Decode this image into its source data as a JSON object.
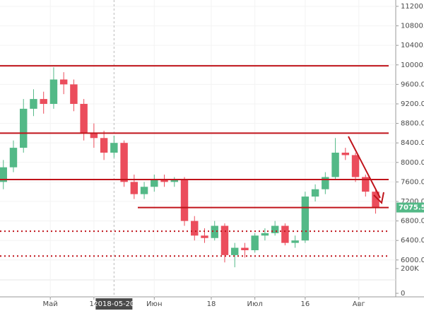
{
  "chart_data": {
    "type": "candlestick",
    "x": [
      "2018-04-17",
      "2018-04-20",
      "2018-04-23",
      "2018-04-26",
      "2018-04-29",
      "2018-05-02",
      "2018-05-05",
      "2018-05-08",
      "2018-05-11",
      "2018-05-14",
      "2018-05-17",
      "2018-05-20",
      "2018-05-23",
      "2018-05-26",
      "2018-05-29",
      "2018-06-01",
      "2018-06-04",
      "2018-06-07",
      "2018-06-10",
      "2018-06-13",
      "2018-06-16",
      "2018-06-19",
      "2018-06-22",
      "2018-06-25",
      "2018-06-28",
      "2018-07-01",
      "2018-07-04",
      "2018-07-07",
      "2018-07-10",
      "2018-07-13",
      "2018-07-16",
      "2018-07-19",
      "2018-07-22",
      "2018-07-25",
      "2018-07-28",
      "2018-07-31",
      "2018-08-03",
      "2018-08-06"
    ],
    "open": [
      7600,
      7900,
      8300,
      9100,
      9300,
      9200,
      9700,
      9600,
      9200,
      8600,
      8500,
      8200,
      8400,
      7600,
      7350,
      7500,
      7650,
      7600,
      7650,
      6800,
      6500,
      6450,
      6700,
      6100,
      6250,
      6200,
      6500,
      6550,
      6700,
      6350,
      6400,
      7300,
      7450,
      7700,
      8200,
      8150,
      7700,
      7400
    ],
    "high": [
      8050,
      8450,
      9300,
      9500,
      9450,
      9950,
      9850,
      9700,
      9300,
      8800,
      8650,
      8550,
      8450,
      7750,
      7600,
      7750,
      7750,
      7700,
      7700,
      6900,
      6650,
      6800,
      6750,
      6350,
      6350,
      6550,
      6650,
      6800,
      6750,
      6500,
      7400,
      7550,
      7800,
      8500,
      8300,
      8200,
      7750,
      7450
    ],
    "low": [
      7450,
      7800,
      8200,
      8950,
      9000,
      9100,
      9400,
      9050,
      8450,
      8300,
      8050,
      8100,
      7500,
      7250,
      7250,
      7400,
      7500,
      7500,
      6700,
      6400,
      6350,
      6400,
      5950,
      5850,
      6050,
      6150,
      6400,
      6500,
      6300,
      6250,
      6350,
      7200,
      7350,
      7650,
      8050,
      7600,
      7300,
      6950
    ],
    "close": [
      7900,
      8300,
      9100,
      9300,
      9200,
      9700,
      9600,
      9200,
      8600,
      8500,
      8200,
      8400,
      7600,
      7350,
      7500,
      7650,
      7600,
      7650,
      6800,
      6500,
      6450,
      6700,
      6100,
      6250,
      6200,
      6500,
      6550,
      6700,
      6350,
      6400,
      7300,
      7450,
      7700,
      8200,
      8150,
      7700,
      7400,
      7075.5
    ],
    "up_color": "#53b987",
    "down_color": "#eb4d5c",
    "xlim": [
      "2018-04-16",
      "2018-08-12"
    ],
    "xticks": [
      {
        "value": "2018-05-01",
        "label": "Май"
      },
      {
        "value": "2018-05-14",
        "label": "14"
      },
      {
        "value": "2018-06-01",
        "label": "Июн"
      },
      {
        "value": "2018-06-18",
        "label": "18"
      },
      {
        "value": "2018-07-01",
        "label": "Июл"
      },
      {
        "value": "2018-07-16",
        "label": "16"
      },
      {
        "value": "2018-08-01",
        "label": "Авг"
      }
    ],
    "crosshair": "2018-05-20",
    "ylim": [
      5800,
      11330
    ],
    "yticks": [
      {
        "value": 6000,
        "label": "6000.0"
      },
      {
        "value": 6400,
        "label": "6400.0"
      },
      {
        "value": 6800,
        "label": "6800.0"
      },
      {
        "value": 7200,
        "label": "7200.0"
      },
      {
        "value": 7600,
        "label": "7600.0"
      },
      {
        "value": 8000,
        "label": "8000.0"
      },
      {
        "value": 8400,
        "label": "8400.0"
      },
      {
        "value": 8800,
        "label": "8800.0"
      },
      {
        "value": 9200,
        "label": "9200.0"
      },
      {
        "value": 9600,
        "label": "9600.0"
      },
      {
        "value": 10000,
        "label": "10000.0"
      },
      {
        "value": 10400,
        "label": "10400.0"
      },
      {
        "value": 10800,
        "label": "10800.0"
      },
      {
        "value": 11200,
        "label": "11200.0"
      }
    ],
    "levels": [
      {
        "value": 9980,
        "style": "solid"
      },
      {
        "value": 8600,
        "style": "solid"
      },
      {
        "value": 7650,
        "style": "solid"
      },
      {
        "value": 7075,
        "style": "solid"
      },
      {
        "value": 6590,
        "style": "dotted"
      },
      {
        "value": 6080,
        "style": "dotted"
      }
    ],
    "level_color": "#c0141b",
    "volume_lim": [
      0,
      257000
    ],
    "volume_ticks": [
      {
        "value": 200000,
        "label": "200K"
      },
      0
    ]
  }
}
